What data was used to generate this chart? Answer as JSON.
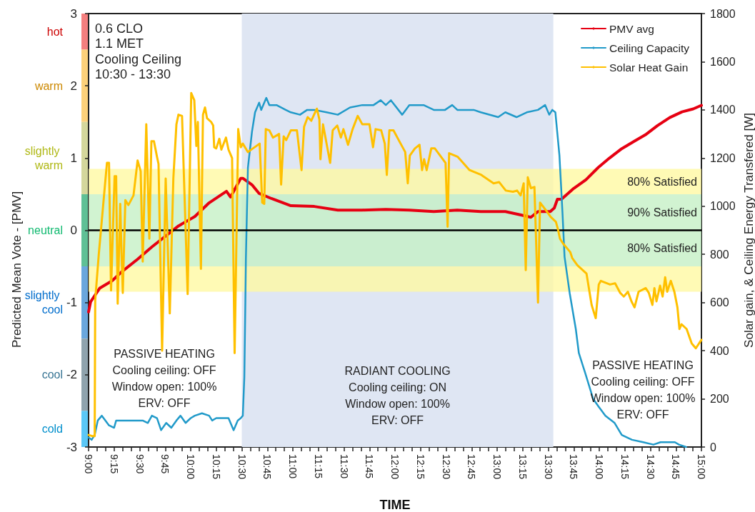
{
  "chart_data": [
    {
      "type": "bar",
      "categories": [
        null
      ],
      "ylim": [
        -3,
        3
      ],
      "tick_labels": false,
      "series": [
        {
          "name": "hot",
          "color": "#f47f7f",
          "base": [
            2.5
          ],
          "values": [
            0.5
          ]
        },
        {
          "name": "warm",
          "color": "#fdd17a",
          "base": [
            1.5
          ],
          "values": [
            1
          ]
        },
        {
          "name": "slightly warm",
          "color": "#d4d79c",
          "base": [
            0.5
          ],
          "values": [
            1
          ]
        },
        {
          "name": "neutral",
          "color": "#5fc096",
          "base": [
            -0.5
          ],
          "values": [
            1
          ]
        },
        {
          "name": "slightly cool",
          "color": "#6aa7dd",
          "base": [
            -1.5
          ],
          "values": [
            1
          ]
        },
        {
          "name": "cool",
          "color": "#8fa3ad",
          "base": [
            -2.5
          ],
          "values": [
            1
          ]
        },
        {
          "name": "cold",
          "color": "#5bc8f7",
          "base": [
            -3
          ],
          "values": [
            0.5
          ]
        }
      ]
    },
    {
      "type": "line",
      "xlabel": "TIME",
      "ylabel": "Predicted Mean Vote - [PMV]",
      "y2label": "Solar gain, & Ceiling Energy Transfered [W]",
      "legend": "top right",
      "annotations": [
        "0.6 CLO\n1.1 MET\nCooling Ceiling\n10:30 - 13:30",
        "PASSIVE HEATING\nCooling ceiling: OFF\nWindow open: 100%\nERV: OFF",
        "PASSIVE HEATING\nCooling ceiling: OFF\nWindow open: 100%\nERV: OFF"
      ],
      "xlim": [
        9,
        15
      ],
      "xticks": [
        {
          "value": 9,
          "label": "9:00"
        },
        {
          "value": 9.0833,
          "label": null
        },
        {
          "value": 9.1667,
          "label": null
        },
        {
          "value": 9.25,
          "label": "9:15"
        },
        {
          "value": 9.3333,
          "label": null
        },
        {
          "value": 9.4167,
          "label": null
        },
        {
          "value": 9.5,
          "label": "9:30"
        },
        {
          "value": 9.5833,
          "label": null
        },
        {
          "value": 9.6667,
          "label": null
        },
        {
          "value": 9.75,
          "label": "9:45"
        },
        {
          "value": 9.8333,
          "label": null
        },
        {
          "value": 9.9167,
          "label": null
        },
        {
          "value": 10,
          "label": "10:00"
        },
        {
          "value": 10.0833,
          "label": null
        },
        {
          "value": 10.1667,
          "label": null
        },
        {
          "value": 10.25,
          "label": "10:15"
        },
        {
          "value": 10.3333,
          "label": null
        },
        {
          "value": 10.4167,
          "label": null
        },
        {
          "value": 10.5,
          "label": "10:30"
        },
        {
          "value": 10.5833,
          "label": null
        },
        {
          "value": 10.6667,
          "label": null
        },
        {
          "value": 10.75,
          "label": "10:45"
        },
        {
          "value": 10.8333,
          "label": null
        },
        {
          "value": 10.9167,
          "label": null
        },
        {
          "value": 11,
          "label": "11:00"
        },
        {
          "value": 11.0833,
          "label": null
        },
        {
          "value": 11.1667,
          "label": null
        },
        {
          "value": 11.25,
          "label": "11:15"
        },
        {
          "value": 11.3333,
          "label": null
        },
        {
          "value": 11.4167,
          "label": null
        },
        {
          "value": 11.5,
          "label": "11:30"
        },
        {
          "value": 11.5833,
          "label": null
        },
        {
          "value": 11.6667,
          "label": null
        },
        {
          "value": 11.75,
          "label": "11:45"
        },
        {
          "value": 11.8333,
          "label": null
        },
        {
          "value": 11.9167,
          "label": null
        },
        {
          "value": 12,
          "label": "12:00"
        },
        {
          "value": 12.0833,
          "label": null
        },
        {
          "value": 12.1667,
          "label": null
        },
        {
          "value": 12.25,
          "label": "12:15"
        },
        {
          "value": 12.3333,
          "label": null
        },
        {
          "value": 12.4167,
          "label": null
        },
        {
          "value": 12.5,
          "label": "12:30"
        },
        {
          "value": 12.5833,
          "label": null
        },
        {
          "value": 12.6667,
          "label": null
        },
        {
          "value": 12.75,
          "label": "12:45"
        },
        {
          "value": 12.8333,
          "label": null
        },
        {
          "value": 12.9167,
          "label": null
        },
        {
          "value": 13,
          "label": "13:00"
        },
        {
          "value": 13.0833,
          "label": null
        },
        {
          "value": 13.1667,
          "label": null
        },
        {
          "value": 13.25,
          "label": "13:15"
        },
        {
          "value": 13.3333,
          "label": null
        },
        {
          "value": 13.4167,
          "label": null
        },
        {
          "value": 13.5,
          "label": "13:30"
        },
        {
          "value": 13.5833,
          "label": null
        },
        {
          "value": 13.6667,
          "label": null
        },
        {
          "value": 13.75,
          "label": "13:45"
        },
        {
          "value": 13.8333,
          "label": null
        },
        {
          "value": 13.9167,
          "label": null
        },
        {
          "value": 14,
          "label": "14:00"
        },
        {
          "value": 14.0833,
          "label": null
        },
        {
          "value": 14.1667,
          "label": null
        },
        {
          "value": 14.25,
          "label": "14:15"
        },
        {
          "value": 14.3333,
          "label": null
        },
        {
          "value": 14.4167,
          "label": null
        },
        {
          "value": 14.5,
          "label": "14:30"
        },
        {
          "value": 14.5833,
          "label": null
        },
        {
          "value": 14.6667,
          "label": null
        },
        {
          "value": 14.75,
          "label": "14:45"
        },
        {
          "value": 14.8333,
          "label": null
        },
        {
          "value": 14.9167,
          "label": null
        },
        {
          "value": 15,
          "label": "15:00"
        }
      ],
      "ylim": [
        -3,
        3
      ],
      "yticks": [
        -3,
        -2,
        -1,
        0,
        1,
        2,
        3
      ],
      "y2lim": [
        0,
        1800
      ],
      "y2ticks": [
        0,
        200,
        400,
        600,
        800,
        1000,
        1200,
        1400,
        1600,
        1800
      ],
      "ref_lines": [
        {
          "axis": "y",
          "value": 0,
          "color": "#000000"
        }
      ],
      "bands": [
        {
          "axis": "x",
          "from": 10.5,
          "to": 13.55,
          "label": "RADIANT COOLING\nCooling ceiling: ON\nWindow open: 100%\nERV: OFF",
          "color": "#dfe6f3"
        },
        {
          "axis": "y",
          "from": 0.5,
          "to": 0.85,
          "label": "80% Satisfied",
          "color": "#fff9a0"
        },
        {
          "axis": "y",
          "from": 0,
          "to": 0.5,
          "label": "90% Satisfied",
          "color": "#c4f0c4"
        },
        {
          "axis": "y",
          "from": -0.5,
          "to": 0,
          "label": "80% Satisfied",
          "color": "#c4f0c4"
        },
        {
          "axis": "y",
          "from": -0.85,
          "to": -0.5,
          "color": "#fff9a0"
        }
      ],
      "series": [
        {
          "name": "PMV avg",
          "color": "#e60012",
          "x": [
            9.0,
            9.02,
            9.11,
            9.23,
            9.32,
            9.48,
            9.62,
            9.88,
            10.04,
            10.18,
            10.35,
            10.39,
            10.49,
            10.51,
            10.6,
            10.67,
            10.79,
            10.98,
            11.21,
            11.44,
            11.68,
            11.91,
            12.14,
            12.38,
            12.61,
            12.84,
            13.08,
            13.24,
            13.33,
            13.4,
            13.52,
            13.56,
            13.59,
            13.63,
            13.75,
            13.87,
            13.99,
            14.1,
            14.22,
            14.34,
            14.46,
            14.57,
            14.69,
            14.81,
            14.92,
            15.0
          ],
          "values": [
            -1.13,
            -0.99,
            -0.8,
            -0.7,
            -0.58,
            -0.4,
            -0.23,
            0.06,
            0.19,
            0.38,
            0.54,
            0.46,
            0.72,
            0.72,
            0.63,
            0.51,
            0.44,
            0.34,
            0.33,
            0.28,
            0.28,
            0.29,
            0.28,
            0.26,
            0.28,
            0.26,
            0.26,
            0.21,
            0.18,
            0.26,
            0.26,
            0.31,
            0.43,
            0.43,
            0.58,
            0.7,
            0.87,
            1.0,
            1.13,
            1.23,
            1.33,
            1.45,
            1.56,
            1.64,
            1.68,
            1.73
          ]
        },
        {
          "name": "Ceiling Capacity",
          "color": "#219ac9",
          "axis": "y2",
          "x": [
            9.0,
            9.03,
            9.06,
            9.09,
            9.13,
            9.2,
            9.25,
            9.27,
            9.34,
            9.53,
            9.58,
            9.62,
            9.67,
            9.71,
            9.76,
            9.81,
            9.86,
            9.9,
            9.95,
            10.0,
            10.04,
            10.11,
            10.18,
            10.21,
            10.25,
            10.37,
            10.42,
            10.46,
            10.49,
            10.51,
            10.525,
            10.535,
            10.54,
            10.56,
            10.6,
            10.63,
            10.67,
            10.69,
            10.74,
            10.77,
            10.84,
            10.93,
            10.98,
            11.07,
            11.14,
            11.21,
            11.33,
            11.44,
            11.56,
            11.68,
            11.79,
            11.86,
            11.91,
            11.96,
            12.07,
            12.14,
            12.28,
            12.38,
            12.49,
            12.56,
            12.61,
            12.77,
            12.84,
            13.01,
            13.08,
            13.19,
            13.29,
            13.4,
            13.47,
            13.51,
            13.54,
            13.57,
            13.61,
            13.64,
            13.66,
            13.71,
            13.77,
            13.8,
            13.86,
            13.94,
            13.99,
            14.06,
            14.15,
            14.22,
            14.32,
            14.43,
            14.53,
            14.6,
            14.67,
            14.74,
            14.78,
            14.85
          ],
          "values": [
            40,
            30,
            50,
            110,
            130,
            90,
            80,
            110,
            110,
            110,
            100,
            130,
            120,
            70,
            100,
            80,
            110,
            130,
            100,
            120,
            130,
            140,
            130,
            110,
            120,
            120,
            70,
            110,
            120,
            130,
            290,
            600,
            780,
            1160,
            1310,
            1390,
            1430,
            1400,
            1450,
            1420,
            1420,
            1400,
            1390,
            1380,
            1400,
            1400,
            1390,
            1380,
            1410,
            1420,
            1420,
            1440,
            1420,
            1440,
            1380,
            1420,
            1420,
            1400,
            1400,
            1420,
            1400,
            1400,
            1390,
            1370,
            1390,
            1370,
            1390,
            1400,
            1420,
            1380,
            1400,
            1390,
            1210,
            970,
            790,
            640,
            490,
            390,
            310,
            200,
            170,
            130,
            100,
            50,
            30,
            20,
            10,
            20,
            20,
            20,
            10,
            0
          ]
        },
        {
          "name": "Solar Heat Gain",
          "color": "#ffc000",
          "axis": "y2",
          "x": [
            9.0,
            9.04,
            9.06,
            9.065,
            9.1,
            9.18,
            9.2,
            9.22,
            9.255,
            9.27,
            9.285,
            9.31,
            9.32,
            9.335,
            9.36,
            9.39,
            9.44,
            9.48,
            9.51,
            9.53,
            9.565,
            9.595,
            9.615,
            9.64,
            9.67,
            9.685,
            9.72,
            9.755,
            9.795,
            9.83,
            9.86,
            9.88,
            9.915,
            9.97,
            10.005,
            10.035,
            10.055,
            10.07,
            10.1,
            10.12,
            10.14,
            10.16,
            10.2,
            10.22,
            10.23,
            10.25,
            10.28,
            10.3,
            10.345,
            10.37,
            10.405,
            10.43,
            10.465,
            10.49,
            10.51,
            10.56,
            10.675,
            10.7,
            10.72,
            10.735,
            10.77,
            10.805,
            10.865,
            10.885,
            10.91,
            10.935,
            10.98,
            11.04,
            11.085,
            11.11,
            11.145,
            11.18,
            11.235,
            11.26,
            11.27,
            11.295,
            11.33,
            11.365,
            11.39,
            11.435,
            11.47,
            11.495,
            11.54,
            11.585,
            11.635,
            11.68,
            11.75,
            11.785,
            11.81,
            11.865,
            11.9,
            11.92,
            11.945,
            11.985,
            12.055,
            12.1,
            12.125,
            12.145,
            12.195,
            12.24,
            12.265,
            12.285,
            12.31,
            12.355,
            12.39,
            12.425,
            12.495,
            12.515,
            12.53,
            12.615,
            12.73,
            12.845,
            12.965,
            13.02,
            13.085,
            13.155,
            13.195,
            13.23,
            13.26,
            13.28,
            13.3,
            13.33,
            13.365,
            13.4,
            13.42,
            13.475,
            13.525,
            13.575,
            13.595,
            13.615,
            13.645,
            13.715,
            13.735,
            13.785,
            13.875,
            13.925,
            13.965,
            13.995,
            14.015,
            14.105,
            14.155,
            14.205,
            14.24,
            14.28,
            14.315,
            14.345,
            14.385,
            14.455,
            14.485,
            14.52,
            14.54,
            14.56,
            14.595,
            14.62,
            14.645,
            14.665,
            14.7,
            14.735,
            14.765,
            14.785,
            14.805,
            14.855,
            14.905,
            14.945,
            15.0
          ],
          "values": [
            50,
            45,
            45,
            610,
            800,
            1180,
            1180,
            650,
            1125,
            1125,
            595,
            1010,
            845,
            640,
            1025,
            1005,
            1045,
            1190,
            1145,
            770,
            1340,
            865,
            1270,
            1270,
            1205,
            1175,
            400,
            1115,
            555,
            1115,
            1340,
            1380,
            1375,
            635,
            1470,
            1440,
            1250,
            1350,
            740,
            1380,
            1410,
            1365,
            1350,
            1335,
            1245,
            1240,
            1280,
            1235,
            1285,
            1235,
            1200,
            390,
            1320,
            1245,
            1260,
            1225,
            1260,
            1015,
            1010,
            1320,
            1315,
            1285,
            1300,
            1090,
            1290,
            1275,
            1315,
            1315,
            1150,
            1330,
            1370,
            1355,
            1405,
            1360,
            1195,
            1340,
            1260,
            1180,
            1315,
            1335,
            1285,
            1320,
            1255,
            1320,
            1375,
            1340,
            1340,
            1245,
            1320,
            1315,
            1260,
            1130,
            1315,
            1315,
            1260,
            1225,
            1095,
            1210,
            1240,
            1255,
            1150,
            1195,
            1150,
            1240,
            1240,
            1220,
            1180,
            915,
            1220,
            1205,
            1150,
            1130,
            1095,
            1100,
            1065,
            1060,
            1065,
            1045,
            1095,
            735,
            1120,
            1075,
            1080,
            600,
            1015,
            985,
            955,
            935,
            905,
            865,
            845,
            810,
            785,
            755,
            720,
            590,
            535,
            675,
            690,
            675,
            680,
            640,
            625,
            645,
            605,
            580,
            645,
            660,
            640,
            590,
            660,
            605,
            670,
            625,
            705,
            645,
            690,
            645,
            580,
            490,
            510,
            490,
            430,
            410,
            445
          ]
        }
      ]
    }
  ]
}
